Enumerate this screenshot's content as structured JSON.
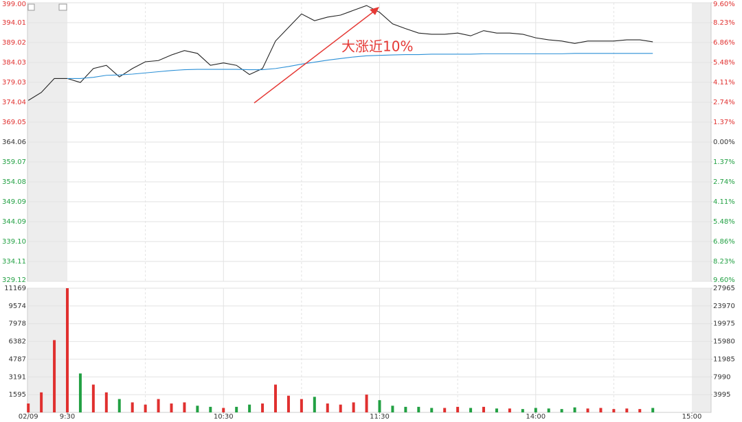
{
  "chart_data": [
    {
      "type": "line",
      "annotation": "大涨近10%",
      "x": [
        "9:15",
        "9:20",
        "9:25",
        "9:30",
        "9:35",
        "9:40",
        "9:45",
        "9:50",
        "9:55",
        "10:00",
        "10:05",
        "10:10",
        "10:15",
        "10:20",
        "10:25",
        "10:30",
        "10:35",
        "10:40",
        "10:45",
        "10:50",
        "10:55",
        "11:00",
        "11:05",
        "11:10",
        "11:15",
        "11:20",
        "11:25",
        "11:30",
        "13:05",
        "13:10",
        "13:15",
        "13:20",
        "13:25",
        "13:30",
        "13:35",
        "13:40",
        "13:45",
        "13:50",
        "13:55",
        "14:00",
        "14:05",
        "14:10",
        "14:15",
        "14:20",
        "14:25",
        "14:30",
        "14:35",
        "14:40",
        "14:45"
      ],
      "series": [
        {
          "color": "#222222",
          "values": [
            374.5,
            376.5,
            380,
            380,
            379,
            382.5,
            383.3,
            380.4,
            382.5,
            384.2,
            384.5,
            385.9,
            387,
            386.3,
            383.3,
            383.9,
            383.3,
            381,
            382.5,
            389.4,
            392.8,
            396.2,
            394.5,
            395.4,
            395.9,
            397.1,
            398.3,
            396.6,
            393.7,
            392.5,
            391.4,
            391.1,
            391.1,
            391.4,
            390.7,
            392,
            391.4,
            391.4,
            391.1,
            390.2,
            389.7,
            389.4,
            388.8,
            389.4,
            389.4,
            389.4,
            389.7,
            389.7,
            389.2
          ]
        },
        {
          "color": "#2a8fd6",
          "values": [
            null,
            null,
            null,
            380.0,
            380.0,
            380.3,
            380.8,
            380.9,
            381.1,
            381.4,
            381.7,
            382.0,
            382.2,
            382.3,
            382.3,
            382.3,
            382.3,
            382.2,
            382.2,
            382.5,
            383.0,
            383.6,
            384.1,
            384.6,
            385.0,
            385.4,
            385.7,
            385.8,
            385.9,
            386.0,
            386.0,
            386.1,
            386.1,
            386.1,
            386.1,
            386.2,
            386.2,
            386.2,
            386.2,
            386.2,
            386.2,
            386.2,
            386.3,
            386.3,
            386.3,
            386.3,
            386.3,
            386.3,
            386.3
          ]
        }
      ],
      "ylim": [
        329.12,
        399.0
      ],
      "yticks": [
        {
          "value": 399.0,
          "label": "399.00"
        },
        {
          "value": 394.01,
          "label": "394.01"
        },
        {
          "value": 389.02,
          "label": "389.02"
        },
        {
          "value": 384.03,
          "label": "384.03"
        },
        {
          "value": 379.03,
          "label": "379.03"
        },
        {
          "value": 374.04,
          "label": "374.04"
        },
        {
          "value": 369.05,
          "label": "369.05"
        },
        {
          "value": 364.06,
          "label": "364.06"
        },
        {
          "value": 359.07,
          "label": "359.07"
        },
        {
          "value": 354.08,
          "label": "354.08"
        },
        {
          "value": 349.09,
          "label": "349.09"
        },
        {
          "value": 344.09,
          "label": "344.09"
        },
        {
          "value": 339.1,
          "label": "339.10"
        },
        {
          "value": 334.11,
          "label": "334.11"
        },
        {
          "value": 329.12,
          "label": "329.12"
        }
      ],
      "y2lim": [
        -9.6,
        9.6
      ],
      "y2ticks": [
        {
          "value": 9.6,
          "label": "9.60%"
        },
        {
          "value": 8.23,
          "label": "8.23%"
        },
        {
          "value": 6.86,
          "label": "6.86%"
        },
        {
          "value": 5.48,
          "label": "5.48%"
        },
        {
          "value": 4.11,
          "label": "4.11%"
        },
        {
          "value": 2.74,
          "label": "2.74%"
        },
        {
          "value": 1.37,
          "label": "1.37%"
        },
        {
          "value": 0,
          "label": "0.00%"
        },
        {
          "value": -1.37,
          "label": "1.37%"
        },
        {
          "value": -2.74,
          "label": "2.74%"
        },
        {
          "value": -4.11,
          "label": "4.11%"
        },
        {
          "value": -5.48,
          "label": "5.48%"
        },
        {
          "value": -6.86,
          "label": "6.86%"
        },
        {
          "value": -8.23,
          "label": "8.23%"
        },
        {
          "value": -9.6,
          "label": "9.60%"
        }
      ],
      "up_color": "#e0302f",
      "down_color": "#22a043",
      "grid": true
    },
    {
      "type": "bar",
      "x": [
        "9:15",
        "9:20",
        "9:25",
        "9:30",
        "9:35",
        "9:40",
        "9:45",
        "9:50",
        "9:55",
        "10:00",
        "10:05",
        "10:10",
        "10:15",
        "10:20",
        "10:25",
        "10:30",
        "10:35",
        "10:40",
        "10:45",
        "10:50",
        "10:55",
        "11:00",
        "11:05",
        "11:10",
        "11:15",
        "11:20",
        "11:25",
        "11:30",
        "13:05",
        "13:10",
        "13:15",
        "13:20",
        "13:25",
        "13:30",
        "13:35",
        "13:40",
        "13:45",
        "13:50",
        "13:55",
        "14:00",
        "14:05",
        "14:10",
        "14:15",
        "14:20",
        "14:25",
        "14:30",
        "14:35",
        "14:40",
        "14:45"
      ],
      "values": [
        800,
        1800,
        6500,
        11169,
        3500,
        2500,
        1800,
        1200,
        900,
        700,
        1200,
        800,
        900,
        600,
        500,
        400,
        500,
        700,
        800,
        2500,
        1500,
        1200,
        1400,
        800,
        700,
        900,
        1600,
        1100,
        600,
        500,
        500,
        400,
        400,
        500,
        400,
        500,
        350,
        350,
        300,
        400,
        350,
        300,
        450,
        350,
        400,
        300,
        350,
        300,
        400
      ],
      "ylim": [
        0,
        11169
      ],
      "yticks": [
        11169,
        9574,
        7978,
        6382,
        4787,
        3191,
        1595
      ],
      "y2lim": [
        0,
        27965
      ],
      "y2ticks": [
        27965,
        23970,
        19975,
        15980,
        11985,
        7990,
        3995
      ],
      "xticks": [
        {
          "value": "9:15",
          "label": "02/09"
        },
        "9:30",
        "10:30",
        "11:30",
        "14:00",
        "15:00"
      ],
      "up_color": "#e0302f",
      "down_color": "#22a043",
      "grid": true
    }
  ]
}
